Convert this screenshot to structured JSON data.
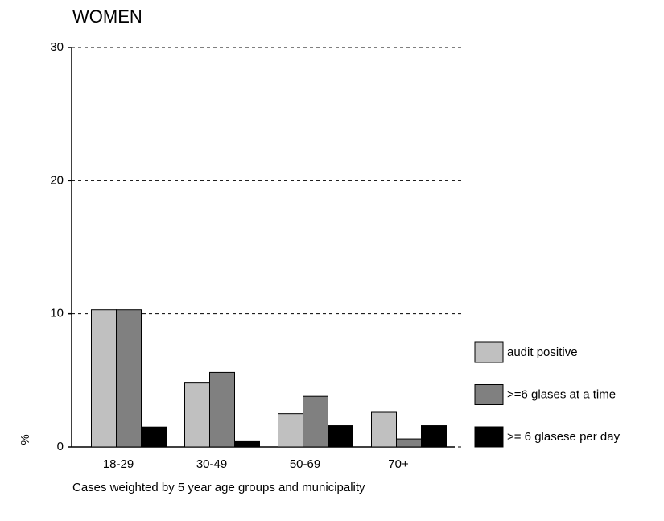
{
  "chart_data": {
    "type": "bar",
    "title": "WOMEN",
    "y_label": "%",
    "note": "Cases weighted by 5 year age groups and municipality",
    "categories": [
      "18-29",
      "30-49",
      "50-69",
      "70+"
    ],
    "series": [
      {
        "name": "audit positive",
        "color": "#c0c0c0",
        "values": [
          10.3,
          4.8,
          2.5,
          2.6
        ]
      },
      {
        "name": ">=6 glases at a time",
        "color": "#808080",
        "values": [
          10.3,
          5.6,
          3.8,
          0.6
        ]
      },
      {
        "name": ">= 6 glasese per day",
        "color": "#000000",
        "values": [
          1.5,
          0.4,
          1.6,
          1.6
        ]
      }
    ],
    "ylim": [
      0,
      30
    ],
    "yticks": [
      0,
      10,
      20,
      30
    ],
    "grid": true
  }
}
